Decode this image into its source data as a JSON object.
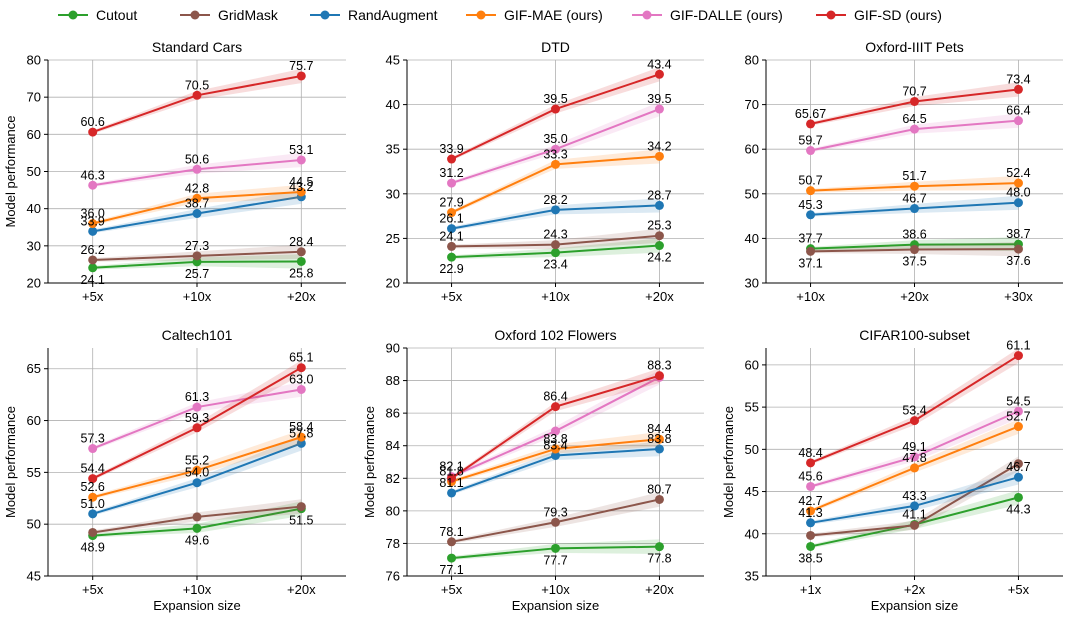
{
  "legend": [
    {
      "name": "Cutout",
      "color": "#2ca02c"
    },
    {
      "name": "GridMask",
      "color": "#8c564b"
    },
    {
      "name": "RandAugment",
      "color": "#1f77b4"
    },
    {
      "name": "GIF-MAE (ours)",
      "color": "#ff7f0e"
    },
    {
      "name": "GIF-DALLE (ours)",
      "color": "#e377c2"
    },
    {
      "name": "GIF-SD (ours)",
      "color": "#d62728"
    }
  ],
  "chart_data": [
    {
      "type": "line",
      "title": "Standard Cars",
      "xlabel": "",
      "ylabel": "Model performance",
      "categories": [
        "+5x",
        "+10x",
        "+20x"
      ],
      "ylim": [
        20,
        80
      ],
      "yticks": [
        20,
        30,
        40,
        50,
        60,
        70,
        80
      ],
      "series": [
        {
          "name": "Cutout",
          "values": [
            24.1,
            25.7,
            25.8
          ],
          "labels": [
            "24.1",
            "25.7",
            "25.8"
          ]
        },
        {
          "name": "GridMask",
          "values": [
            26.2,
            27.3,
            28.4
          ],
          "labels": [
            "26.2",
            "27.3",
            "28.4"
          ]
        },
        {
          "name": "RandAugment",
          "values": [
            33.9,
            38.7,
            43.2
          ],
          "labels": [
            "33.9",
            "38.7",
            "43.2"
          ]
        },
        {
          "name": "GIF-MAE (ours)",
          "values": [
            36.0,
            42.8,
            44.5
          ],
          "labels": [
            "36.0",
            "42.8",
            "44.5"
          ]
        },
        {
          "name": "GIF-DALLE (ours)",
          "values": [
            46.3,
            50.6,
            53.1
          ],
          "labels": [
            "46.3",
            "50.6",
            "53.1"
          ]
        },
        {
          "name": "GIF-SD (ours)",
          "values": [
            60.6,
            70.5,
            75.7
          ],
          "labels": [
            "60.6",
            "70.5",
            "75.7"
          ]
        }
      ]
    },
    {
      "type": "line",
      "title": "DTD",
      "xlabel": "",
      "ylabel": "",
      "categories": [
        "+5x",
        "+10x",
        "+20x"
      ],
      "ylim": [
        20,
        45
      ],
      "yticks": [
        20,
        25,
        30,
        35,
        40,
        45
      ],
      "series": [
        {
          "name": "Cutout",
          "values": [
            22.9,
            23.4,
            24.2
          ],
          "labels": [
            "22.9",
            "23.4",
            "24.2"
          ]
        },
        {
          "name": "GridMask",
          "values": [
            24.1,
            24.3,
            25.3
          ],
          "labels": [
            "24.1",
            "24.3",
            "25.3"
          ]
        },
        {
          "name": "RandAugment",
          "values": [
            26.1,
            28.2,
            28.7
          ],
          "labels": [
            "26.1",
            "28.2",
            "28.7"
          ]
        },
        {
          "name": "GIF-MAE (ours)",
          "values": [
            27.9,
            33.3,
            34.2
          ],
          "labels": [
            "27.9",
            "33.3",
            "34.2"
          ]
        },
        {
          "name": "GIF-DALLE (ours)",
          "values": [
            31.2,
            35.0,
            39.5
          ],
          "labels": [
            "31.2",
            "35.0",
            "39.5"
          ]
        },
        {
          "name": "GIF-SD (ours)",
          "values": [
            33.9,
            39.5,
            43.4
          ],
          "labels": [
            "33.9",
            "39.5",
            "43.4"
          ]
        }
      ]
    },
    {
      "type": "line",
      "title": "Oxford-IIIT Pets",
      "xlabel": "",
      "ylabel": "",
      "categories": [
        "+10x",
        "+20x",
        "+30x"
      ],
      "ylim": [
        30,
        80
      ],
      "yticks": [
        30,
        40,
        50,
        60,
        70,
        80
      ],
      "series": [
        {
          "name": "Cutout",
          "values": [
            37.7,
            38.6,
            38.7
          ],
          "labels": [
            "37.7",
            "38.6",
            "38.7"
          ]
        },
        {
          "name": "GridMask",
          "values": [
            37.1,
            37.5,
            37.6
          ],
          "labels": [
            "37.1",
            "37.5",
            "37.6"
          ]
        },
        {
          "name": "RandAugment",
          "values": [
            45.3,
            46.7,
            48.0
          ],
          "labels": [
            "45.3",
            "46.7",
            "48.0"
          ]
        },
        {
          "name": "GIF-MAE (ours)",
          "values": [
            50.7,
            51.7,
            52.4
          ],
          "labels": [
            "50.7",
            "51.7",
            "52.4"
          ]
        },
        {
          "name": "GIF-DALLE (ours)",
          "values": [
            59.7,
            64.5,
            66.4
          ],
          "labels": [
            "59.7",
            "64.5",
            "66.4"
          ]
        },
        {
          "name": "GIF-SD (ours)",
          "values": [
            65.67,
            70.7,
            73.4
          ],
          "labels": [
            "65.67",
            "70.7",
            "73.4"
          ]
        }
      ]
    },
    {
      "type": "line",
      "title": "Caltech101",
      "xlabel": "Expansion size",
      "ylabel": "Model performance",
      "categories": [
        "+5x",
        "+10x",
        "+20x"
      ],
      "ylim": [
        45,
        67
      ],
      "yticks": [
        45,
        50,
        55,
        60,
        65
      ],
      "series": [
        {
          "name": "Cutout",
          "values": [
            48.9,
            49.6,
            51.5
          ],
          "labels": [
            "48.9",
            "49.6",
            "51.5"
          ]
        },
        {
          "name": "GridMask",
          "values": [
            49.2,
            50.7,
            51.7
          ],
          "labels": [
            "",
            "",
            ""
          ]
        },
        {
          "name": "RandAugment",
          "values": [
            51.0,
            54.0,
            57.8
          ],
          "labels": [
            "51.0",
            "54.0",
            "57.8"
          ]
        },
        {
          "name": "GIF-MAE (ours)",
          "values": [
            52.6,
            55.2,
            58.4
          ],
          "labels": [
            "52.6",
            "55.2",
            "58.4"
          ]
        },
        {
          "name": "GIF-DALLE (ours)",
          "values": [
            57.3,
            61.3,
            63.0
          ],
          "labels": [
            "57.3",
            "61.3",
            "63.0"
          ]
        },
        {
          "name": "GIF-SD (ours)",
          "values": [
            54.4,
            59.3,
            65.1
          ],
          "labels": [
            "54.4",
            "59.3",
            "65.1"
          ]
        }
      ]
    },
    {
      "type": "line",
      "title": "Oxford 102 Flowers",
      "xlabel": "Expansion size",
      "ylabel": "Model performance",
      "categories": [
        "+5x",
        "+10x",
        "+20x"
      ],
      "ylim": [
        76,
        90
      ],
      "yticks": [
        76,
        78,
        80,
        82,
        84,
        86,
        88,
        90
      ],
      "series": [
        {
          "name": "Cutout",
          "values": [
            77.1,
            77.7,
            77.8
          ],
          "labels": [
            "77.1",
            "77.7",
            "77.8"
          ]
        },
        {
          "name": "GridMask",
          "values": [
            78.1,
            79.3,
            80.7
          ],
          "labels": [
            "78.1",
            "79.3",
            "80.7"
          ]
        },
        {
          "name": "RandAugment",
          "values": [
            81.1,
            83.4,
            83.8
          ],
          "labels": [
            "81.1",
            "83.4",
            "83.8"
          ]
        },
        {
          "name": "GIF-MAE (ours)",
          "values": [
            81.8,
            83.8,
            84.4
          ],
          "labels": [
            "81.8",
            "83.8",
            "84.4"
          ]
        },
        {
          "name": "GIF-DALLE (ours)",
          "values": [
            82.1,
            84.9,
            88.2
          ],
          "labels": [
            "82.1",
            "",
            ""
          ]
        },
        {
          "name": "GIF-SD (ours)",
          "values": [
            82.0,
            86.4,
            88.3
          ],
          "labels": [
            "",
            "86.4",
            "88.3"
          ]
        }
      ]
    },
    {
      "type": "line",
      "title": "CIFAR100-subset",
      "xlabel": "Expansion size",
      "ylabel": "Model performance",
      "categories": [
        "+1x",
        "+2x",
        "+5x"
      ],
      "ylim": [
        35,
        62
      ],
      "yticks": [
        35,
        40,
        45,
        50,
        55,
        60
      ],
      "series": [
        {
          "name": "Cutout",
          "values": [
            38.5,
            41.1,
            44.3
          ],
          "labels": [
            "38.5",
            "41.1",
            "44.3"
          ]
        },
        {
          "name": "GridMask",
          "values": [
            39.8,
            41.0,
            48.3
          ],
          "labels": [
            "",
            "",
            ""
          ]
        },
        {
          "name": "RandAugment",
          "values": [
            41.3,
            43.3,
            46.7
          ],
          "labels": [
            "41.3",
            "43.3",
            "46.7"
          ]
        },
        {
          "name": "GIF-MAE (ours)",
          "values": [
            42.7,
            47.8,
            52.7
          ],
          "labels": [
            "42.7",
            "47.8",
            "52.7"
          ]
        },
        {
          "name": "GIF-DALLE (ours)",
          "values": [
            45.6,
            49.1,
            54.5
          ],
          "labels": [
            "45.6",
            "49.1",
            "54.5"
          ]
        },
        {
          "name": "GIF-SD (ours)",
          "values": [
            48.4,
            53.4,
            61.1
          ],
          "labels": [
            "48.4",
            "53.4",
            "61.1"
          ]
        }
      ]
    }
  ]
}
